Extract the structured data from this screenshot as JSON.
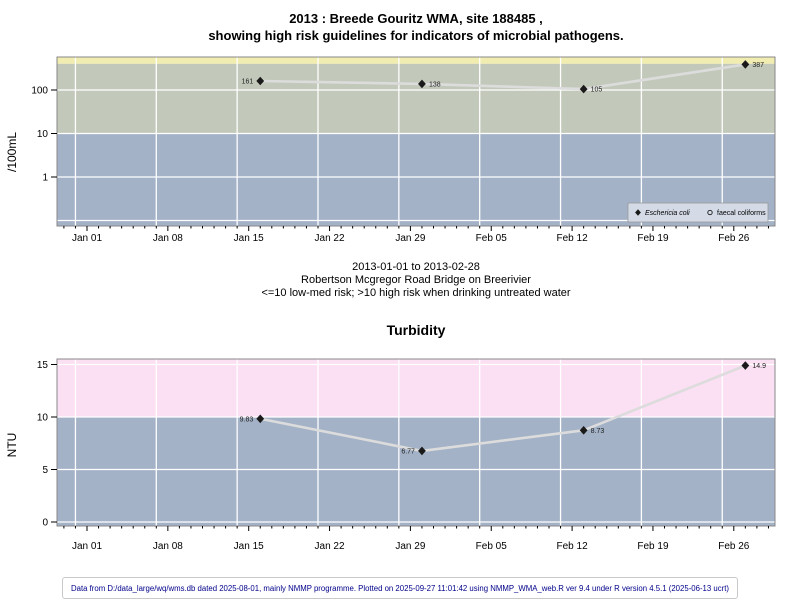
{
  "figure": {
    "title_line1": "2013 : Breede Gouritz WMA, site 188485 ,",
    "title_line2": "showing high risk guidelines for indicators of microbial pathogens.",
    "caption_date_range": "2013-01-01 to 2013-02-28",
    "caption_site": "Robertson Mcgregor Road Bridge on Breerivier",
    "caption_guideline": "<=10 low-med risk; >10 high risk when drinking untreated water",
    "footer": "Data from D:/data_large/wq/wms.db dated 2025-08-01, mainly NMMP programme. Plotted on 2025-09-27 11:01:42 using NMMP_WMA_web.R ver 9.4 under R version 4.5.1 (2025-06-13 ucrt)"
  },
  "colors": {
    "band_yellow": "#f1ecb0",
    "band_green": "#c2c9ba",
    "band_blue": "#a3b2c7",
    "band_pink": "#fbdff3",
    "grid": "#ffffff",
    "frame": "#888888",
    "data_line": "#dcdcdc",
    "marker": "#1a1a1a",
    "tick": "#000000",
    "legend_bg": "#d4dbe6",
    "legend_border": "#999999",
    "footer_text": "#00008b"
  },
  "chart_data": [
    {
      "id": "microbial",
      "type": "line",
      "title": "",
      "ylabel": "/100mL",
      "yscale": "log",
      "x_range": [
        "2013-01-01",
        "2013-02-28"
      ],
      "x_tick_labels": [
        "Jan 01",
        "Jan 08",
        "Jan 15",
        "Jan 22",
        "Jan 29",
        "Feb 05",
        "Feb 12",
        "Feb 19",
        "Feb 26"
      ],
      "y_tick_values": [
        100,
        10,
        1
      ],
      "y_tick_labels": [
        "100",
        "10",
        "1"
      ],
      "extra_gridline_values": [
        0.1
      ],
      "bands": [
        {
          "name": "very-high-risk-band",
          "color_key": "band_yellow",
          "from": 400,
          "to": "top"
        },
        {
          "name": "high-risk-band",
          "color_key": "band_green",
          "from": 10,
          "to": 400
        },
        {
          "name": "low-med-risk-band",
          "color_key": "band_blue",
          "from": "bottom",
          "to": 10
        }
      ],
      "series": [
        {
          "name": "Eschericia coli",
          "marker": "filled-diamond",
          "dates": [
            "2013-01-16",
            "2013-01-30",
            "2013-02-13",
            "2013-02-27"
          ],
          "values": [
            161,
            138,
            105,
            387
          ],
          "point_labels": [
            "161",
            "138",
            "105",
            "387"
          ],
          "label_sides": [
            "left",
            "right",
            "right",
            "right"
          ]
        },
        {
          "name": "faecal coliforms",
          "marker": "open-circle",
          "dates": [],
          "values": [],
          "point_labels": [],
          "label_sides": []
        }
      ],
      "legend": {
        "visible": true,
        "entries": [
          {
            "label": "Eschericia coli",
            "marker": "filled-diamond",
            "italic": true
          },
          {
            "label": "faecal coliforms",
            "marker": "open-circle",
            "italic": false
          }
        ]
      }
    },
    {
      "id": "turbidity",
      "type": "line",
      "title": "Turbidity",
      "ylabel": "NTU",
      "yscale": "linear",
      "x_range": [
        "2013-01-01",
        "2013-02-28"
      ],
      "x_tick_labels": [
        "Jan 01",
        "Jan 08",
        "Jan 15",
        "Jan 22",
        "Jan 29",
        "Feb 05",
        "Feb 12",
        "Feb 19",
        "Feb 26"
      ],
      "y_tick_values": [
        15,
        10,
        5,
        0
      ],
      "y_tick_labels": [
        "15",
        "10",
        "5",
        "0"
      ],
      "extra_gridline_values": [],
      "bands": [
        {
          "name": "high-risk-band",
          "color_key": "band_pink",
          "from": 10,
          "to": "top"
        },
        {
          "name": "low-med-risk-band",
          "color_key": "band_blue",
          "from": "bottom",
          "to": 10
        }
      ],
      "series": [
        {
          "name": "Turbidity",
          "marker": "filled-diamond",
          "dates": [
            "2013-01-16",
            "2013-01-30",
            "2013-02-13",
            "2013-02-27"
          ],
          "values": [
            9.83,
            6.77,
            8.73,
            14.9
          ],
          "point_labels": [
            "9.83",
            "6.77",
            "8.73",
            "14.9"
          ],
          "label_sides": [
            "left",
            "left",
            "right",
            "right"
          ]
        }
      ],
      "legend": {
        "visible": false,
        "entries": []
      }
    }
  ]
}
